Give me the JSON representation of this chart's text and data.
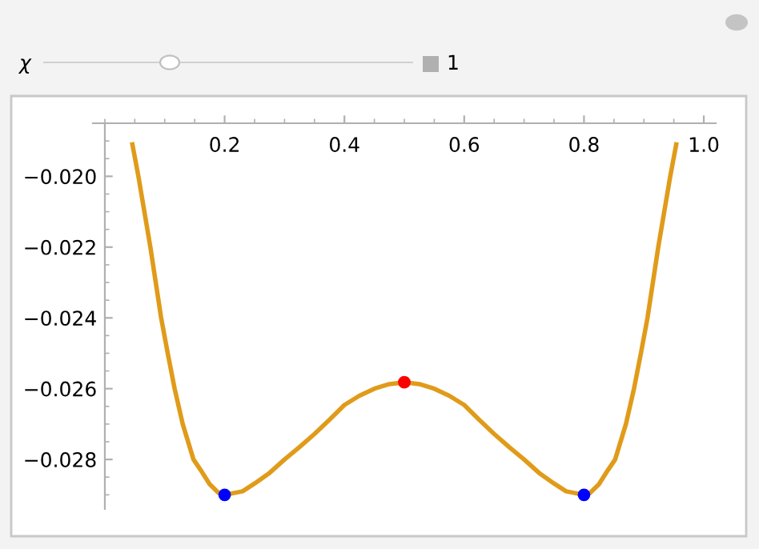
{
  "chart_data": {
    "type": "line",
    "annotations": [
      "χ",
      "1"
    ],
    "xlim": [
      -0.02,
      1.02
    ],
    "ylim": [
      -0.0294,
      -0.0185
    ],
    "xticks": [
      {
        "value": 0.2,
        "label": "0.2"
      },
      {
        "value": 0.4,
        "label": "0.4"
      },
      {
        "value": 0.6,
        "label": "0.6"
      },
      {
        "value": 0.8,
        "label": "0.8"
      },
      {
        "value": 1.0,
        "label": "1.0"
      }
    ],
    "yticks": [
      {
        "value": -0.028,
        "label": "−0.028"
      },
      {
        "value": -0.026,
        "label": "−0.026"
      },
      {
        "value": -0.024,
        "label": "−0.024"
      },
      {
        "value": -0.022,
        "label": "−0.022"
      },
      {
        "value": -0.02,
        "label": "−0.020"
      }
    ],
    "grid": false,
    "legend": false,
    "series": [
      {
        "color": "#e09b1a",
        "marker": "none",
        "x": [
          0.046,
          0.056,
          0.066,
          0.076,
          0.085,
          0.094,
          0.105,
          0.1165,
          0.13,
          0.148,
          0.16,
          0.175,
          0.19,
          0.2,
          0.215,
          0.23,
          0.25,
          0.275,
          0.3,
          0.325,
          0.35,
          0.375,
          0.4,
          0.425,
          0.45,
          0.475,
          0.5,
          0.525,
          0.55,
          0.575,
          0.6,
          0.625,
          0.65,
          0.675,
          0.7,
          0.725,
          0.75,
          0.77,
          0.785,
          0.8,
          0.81,
          0.825,
          0.84,
          0.852,
          0.87,
          0.8835,
          0.895,
          0.906,
          0.915,
          0.924,
          0.934,
          0.944,
          0.954
        ],
        "values": [
          -0.0191,
          -0.02,
          -0.021,
          -0.022,
          -0.023,
          -0.024,
          -0.025,
          -0.026,
          -0.027,
          -0.028,
          -0.0283,
          -0.0287,
          -0.02895,
          -0.029,
          -0.02895,
          -0.0289,
          -0.02868,
          -0.02838,
          -0.028,
          -0.02765,
          -0.02728,
          -0.02688,
          -0.02646,
          -0.0262,
          -0.026,
          -0.02587,
          -0.02582,
          -0.02587,
          -0.026,
          -0.0262,
          -0.02646,
          -0.02688,
          -0.02728,
          -0.02765,
          -0.028,
          -0.02838,
          -0.02868,
          -0.0289,
          -0.02895,
          -0.029,
          -0.02895,
          -0.0287,
          -0.0283,
          -0.028,
          -0.027,
          -0.026,
          -0.025,
          -0.024,
          -0.023,
          -0.022,
          -0.021,
          -0.02,
          -0.0191
        ]
      },
      {
        "type": "scatter",
        "color": "#0000ff",
        "marker": "circle",
        "x": [
          0.2,
          0.8
        ],
        "values": [
          -0.029,
          -0.029
        ]
      },
      {
        "type": "scatter",
        "color": "#ff0000",
        "marker": "circle",
        "x": [
          0.5
        ],
        "values": [
          -0.02582
        ]
      }
    ]
  }
}
